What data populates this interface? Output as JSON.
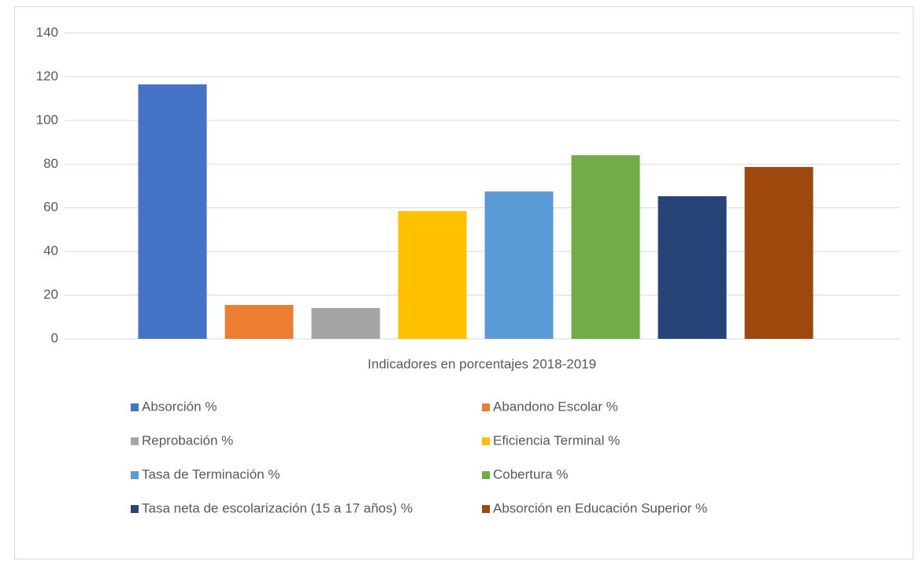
{
  "chart_data": {
    "type": "bar",
    "categories": [
      "Indicadores en porcentajes 2018-2019"
    ],
    "series": [
      {
        "name": "Absorción %",
        "color": "#4472c4",
        "values": [
          116.5
        ]
      },
      {
        "name": "Abandono Escolar %",
        "color": "#ed7d31",
        "values": [
          15.5
        ]
      },
      {
        "name": "Reprobación %",
        "color": "#a5a5a5",
        "values": [
          14.1
        ]
      },
      {
        "name": "Eficiencia Terminal %",
        "color": "#ffc000",
        "values": [
          58.5
        ]
      },
      {
        "name": "Tasa de Terminación %",
        "color": "#5b9bd5",
        "values": [
          67.5
        ]
      },
      {
        "name": "Cobertura %",
        "color": "#70ad47",
        "values": [
          84.1
        ]
      },
      {
        "name": "Tasa neta de escolarización (15 a 17 años) %",
        "color": "#264478",
        "values": [
          65.3
        ]
      },
      {
        "name": "Absorción en Educación Superior %",
        "color": "#9e480e",
        "values": [
          78.7
        ]
      }
    ],
    "ylim": [
      0,
      140
    ],
    "yticks": [
      0,
      20,
      40,
      60,
      80,
      100,
      120,
      140
    ],
    "grid": true,
    "legend": "bottom"
  }
}
